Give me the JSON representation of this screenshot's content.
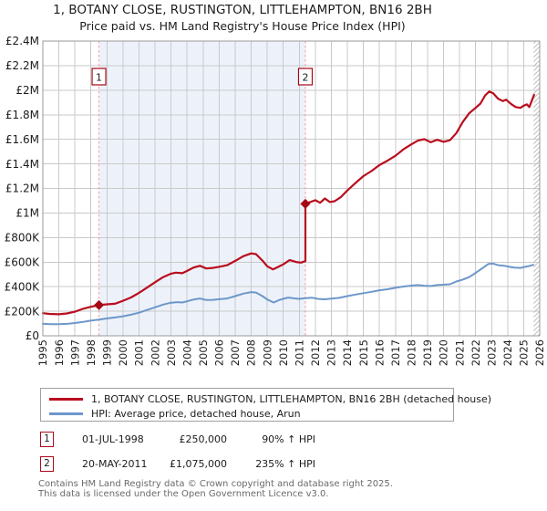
{
  "title": "1, BOTANY CLOSE, RUSTINGTON, LITTLEHAMPTON, BN16 2BH",
  "subtitle": "Price paid vs. HM Land Registry's House Price Index (HPI)",
  "chart_data": {
    "type": "line",
    "x_ticks": [
      1995,
      1996,
      1997,
      1998,
      1999,
      2000,
      2001,
      2002,
      2003,
      2004,
      2005,
      2006,
      2007,
      2008,
      2009,
      2010,
      2011,
      2012,
      2013,
      2014,
      2015,
      2016,
      2017,
      2018,
      2019,
      2020,
      2021,
      2022,
      2023,
      2024,
      2025,
      2026
    ],
    "x_range": [
      1995,
      2026
    ],
    "y_range_gbp": [
      0,
      2400000
    ],
    "y_ticks": [
      [
        0,
        "£0"
      ],
      [
        200000,
        "£200K"
      ],
      [
        400000,
        "£400K"
      ],
      [
        600000,
        "£600K"
      ],
      [
        800000,
        "£800K"
      ],
      [
        1000000,
        "£1M"
      ],
      [
        1200000,
        "£1.2M"
      ],
      [
        1400000,
        "£1.4M"
      ],
      [
        1600000,
        "£1.6M"
      ],
      [
        1800000,
        "£1.8M"
      ],
      [
        2000000,
        "£2M"
      ],
      [
        2200000,
        "£2.2M"
      ],
      [
        2400000,
        "£2.4M"
      ]
    ],
    "grid": true,
    "legend_position": "below",
    "shaded_region_years": [
      1998.5,
      2011.38
    ],
    "future_hatch_from_year": 2025.62,
    "sale_markers": [
      {
        "label": "1",
        "year": 1998.5,
        "price_gbp": 250000
      },
      {
        "label": "2",
        "year": 2011.38,
        "price_gbp": 1075000
      }
    ],
    "series": [
      {
        "name": "1, BOTANY CLOSE, RUSTINGTON, LITTLEHAMPTON, BN16 2BH (detached house)",
        "color": "#b90d1e",
        "points": [
          [
            1995.0,
            184000
          ],
          [
            1995.4,
            178000
          ],
          [
            1996.0,
            175000
          ],
          [
            1996.5,
            182000
          ],
          [
            1997.0,
            196000
          ],
          [
            1997.5,
            220000
          ],
          [
            1998.0,
            236000
          ],
          [
            1998.5,
            250000
          ],
          [
            1999.0,
            256000
          ],
          [
            1999.5,
            261000
          ],
          [
            2000.0,
            285000
          ],
          [
            2000.5,
            312000
          ],
          [
            2001.0,
            350000
          ],
          [
            2001.5,
            392000
          ],
          [
            2002.0,
            436000
          ],
          [
            2002.5,
            478000
          ],
          [
            2003.0,
            506000
          ],
          [
            2003.3,
            514000
          ],
          [
            2003.7,
            510000
          ],
          [
            2004.0,
            528000
          ],
          [
            2004.4,
            556000
          ],
          [
            2004.8,
            570000
          ],
          [
            2005.2,
            548000
          ],
          [
            2005.6,
            553000
          ],
          [
            2006.0,
            562000
          ],
          [
            2006.5,
            575000
          ],
          [
            2007.0,
            610000
          ],
          [
            2007.5,
            648000
          ],
          [
            2008.0,
            671000
          ],
          [
            2008.3,
            665000
          ],
          [
            2008.7,
            612000
          ],
          [
            2009.0,
            566000
          ],
          [
            2009.35,
            541000
          ],
          [
            2009.7,
            562000
          ],
          [
            2010.0,
            582000
          ],
          [
            2010.4,
            617000
          ],
          [
            2010.8,
            601000
          ],
          [
            2011.1,
            596000
          ],
          [
            2011.38,
            608000
          ],
          [
            2011.38,
            1075000
          ],
          [
            2011.7,
            1090000
          ],
          [
            2012.0,
            1104000
          ],
          [
            2012.3,
            1083000
          ],
          [
            2012.6,
            1118000
          ],
          [
            2012.9,
            1089000
          ],
          [
            2013.2,
            1096000
          ],
          [
            2013.6,
            1130000
          ],
          [
            2014.0,
            1184000
          ],
          [
            2014.5,
            1243000
          ],
          [
            2015.0,
            1300000
          ],
          [
            2015.5,
            1341000
          ],
          [
            2016.0,
            1390000
          ],
          [
            2016.5,
            1426000
          ],
          [
            2017.0,
            1466000
          ],
          [
            2017.5,
            1519000
          ],
          [
            2018.0,
            1560000
          ],
          [
            2018.4,
            1589000
          ],
          [
            2018.8,
            1601000
          ],
          [
            2019.2,
            1576000
          ],
          [
            2019.6,
            1596000
          ],
          [
            2020.0,
            1580000
          ],
          [
            2020.4,
            1592000
          ],
          [
            2020.8,
            1651000
          ],
          [
            2021.2,
            1741000
          ],
          [
            2021.6,
            1812000
          ],
          [
            2022.0,
            1856000
          ],
          [
            2022.3,
            1891000
          ],
          [
            2022.6,
            1958000
          ],
          [
            2022.85,
            1989000
          ],
          [
            2023.1,
            1974000
          ],
          [
            2023.4,
            1931000
          ],
          [
            2023.7,
            1911000
          ],
          [
            2023.9,
            1923000
          ],
          [
            2024.2,
            1889000
          ],
          [
            2024.5,
            1863000
          ],
          [
            2024.8,
            1856000
          ],
          [
            2025.0,
            1874000
          ],
          [
            2025.2,
            1884000
          ],
          [
            2025.35,
            1863000
          ],
          [
            2025.5,
            1912000
          ],
          [
            2025.65,
            1962000
          ]
        ]
      },
      {
        "name": "HPI: Average price, detached house, Arun",
        "color": "#6d97ca",
        "points": [
          [
            1995.0,
            97000
          ],
          [
            1995.5,
            95000
          ],
          [
            1996.0,
            94000
          ],
          [
            1996.5,
            97000
          ],
          [
            1997.0,
            104000
          ],
          [
            1997.5,
            113000
          ],
          [
            1998.0,
            123000
          ],
          [
            1998.5,
            132000
          ],
          [
            1999.0,
            141000
          ],
          [
            1999.5,
            149000
          ],
          [
            2000.0,
            159000
          ],
          [
            2000.5,
            172000
          ],
          [
            2001.0,
            188000
          ],
          [
            2001.5,
            210000
          ],
          [
            2002.0,
            232000
          ],
          [
            2002.5,
            254000
          ],
          [
            2003.0,
            270000
          ],
          [
            2003.4,
            274000
          ],
          [
            2003.7,
            271000
          ],
          [
            2004.0,
            281000
          ],
          [
            2004.4,
            296000
          ],
          [
            2004.8,
            304000
          ],
          [
            2005.2,
            291000
          ],
          [
            2005.6,
            293000
          ],
          [
            2006.0,
            298000
          ],
          [
            2006.5,
            304000
          ],
          [
            2007.0,
            323000
          ],
          [
            2007.5,
            343000
          ],
          [
            2008.0,
            356000
          ],
          [
            2008.3,
            352000
          ],
          [
            2008.7,
            323000
          ],
          [
            2009.0,
            296000
          ],
          [
            2009.4,
            271000
          ],
          [
            2009.7,
            289000
          ],
          [
            2010.0,
            301000
          ],
          [
            2010.3,
            311000
          ],
          [
            2010.7,
            305000
          ],
          [
            2011.0,
            301000
          ],
          [
            2011.4,
            306000
          ],
          [
            2011.8,
            310000
          ],
          [
            2012.2,
            300000
          ],
          [
            2012.6,
            297000
          ],
          [
            2013.0,
            303000
          ],
          [
            2013.5,
            309000
          ],
          [
            2014.0,
            323000
          ],
          [
            2014.5,
            336000
          ],
          [
            2015.0,
            347000
          ],
          [
            2015.5,
            358000
          ],
          [
            2016.0,
            371000
          ],
          [
            2016.5,
            379000
          ],
          [
            2017.0,
            391000
          ],
          [
            2017.5,
            401000
          ],
          [
            2018.0,
            409000
          ],
          [
            2018.4,
            413000
          ],
          [
            2018.8,
            408000
          ],
          [
            2019.2,
            405000
          ],
          [
            2019.6,
            413000
          ],
          [
            2020.0,
            416000
          ],
          [
            2020.4,
            420000
          ],
          [
            2020.8,
            442000
          ],
          [
            2021.2,
            458000
          ],
          [
            2021.6,
            478000
          ],
          [
            2022.0,
            512000
          ],
          [
            2022.4,
            548000
          ],
          [
            2022.8,
            585000
          ],
          [
            2023.1,
            588000
          ],
          [
            2023.4,
            575000
          ],
          [
            2023.8,
            570000
          ],
          [
            2024.1,
            562000
          ],
          [
            2024.4,
            556000
          ],
          [
            2024.8,
            553000
          ],
          [
            2025.1,
            562000
          ],
          [
            2025.4,
            570000
          ],
          [
            2025.6,
            578000
          ]
        ]
      }
    ],
    "theme": {
      "red": "#b90d1e",
      "blue": "#6d97ca",
      "shade": "#edf2fa",
      "dashed": "#f59d9d",
      "grid": "#c9c9c9",
      "border": "#999999",
      "hatch": "#bfbfbf",
      "marker": "#a50914",
      "text": "#1c1c1c"
    }
  },
  "legend": {
    "items": [
      {
        "label": "1, BOTANY CLOSE, RUSTINGTON, LITTLEHAMPTON, BN16 2BH (detached house)",
        "color": "#b90d1e"
      },
      {
        "label": "HPI: Average price, detached house, Arun",
        "color": "#6d97ca"
      }
    ]
  },
  "transactions": [
    {
      "marker": "1",
      "date": "01-JUL-1998",
      "price": "£250,000",
      "vs_hpi": "90% ↑ HPI"
    },
    {
      "marker": "2",
      "date": "20-MAY-2011",
      "price": "£1,075,000",
      "vs_hpi": "235% ↑ HPI"
    }
  ],
  "footer": {
    "line1": "Contains HM Land Registry data © Crown copyright and database right 2025.",
    "line2": "This data is licensed under the Open Government Licence v3.0."
  }
}
